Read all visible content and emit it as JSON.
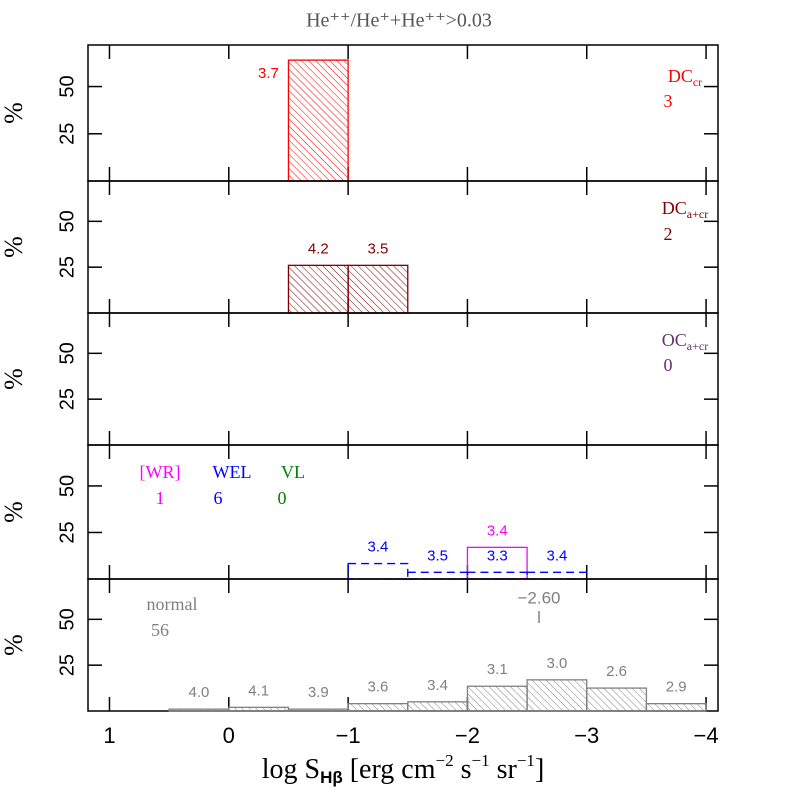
{
  "chart_data": {
    "type": "histogram",
    "title": "He⁺⁺/He⁺+He⁺⁺>0.03",
    "xlabel_parts": [
      {
        "text": "log S"
      },
      {
        "text": "Hβ",
        "sub": true
      },
      {
        "text": " [erg cm"
      },
      {
        "text": "−2",
        "sup": true
      },
      {
        "text": " s"
      },
      {
        "text": "−1",
        "sup": true
      },
      {
        "text": " sr"
      },
      {
        "text": "−1",
        "sup": true
      },
      {
        "text": "]"
      }
    ],
    "xlim": [
      1.18,
      -4.1
    ],
    "xticks": [
      1,
      0,
      {
        "value": -1,
        "label": "−1"
      },
      {
        "value": -2,
        "label": "−2"
      },
      {
        "value": -3,
        "label": "−3"
      },
      {
        "value": -4,
        "label": "−4"
      }
    ],
    "ylim": [
      0,
      72
    ],
    "yticks": [
      25,
      50
    ],
    "ylabel": "%",
    "panels": [
      {
        "series": [
          {
            "name": "DC",
            "subscript": "cr",
            "count": "3",
            "color": "#ff0000",
            "hatched": true,
            "bins": [
              -0.5,
              -1
            ],
            "values": [
              64
            ],
            "bar_annotations": [
              "3.7"
            ]
          }
        ]
      },
      {
        "series": [
          {
            "name": "DC",
            "subscript": "a+cr",
            "count": "2",
            "color": "#800000",
            "hatched": true,
            "bins": [
              -0.5,
              -1,
              -1.5
            ],
            "values": [
              26,
              26
            ],
            "bar_annotations": [
              "4.2",
              "3.5"
            ]
          }
        ]
      },
      {
        "series": [
          {
            "name": "OC",
            "subscript": "a+cr",
            "count": "0",
            "color": "#66306e"
          }
        ]
      },
      {
        "series": [
          {
            "name": "[WR]",
            "count": "1",
            "color": "#ff00ff",
            "hatched": false,
            "bins": [
              -2,
              -2.5
            ],
            "values": [
              17
            ],
            "bar_annotations": [
              "3.4"
            ]
          },
          {
            "name": "WEL",
            "count": "6",
            "color": "#0000ff",
            "hatched": false,
            "dashed": true,
            "bins": [
              -1,
              -1.5,
              -2,
              -2.5,
              -3
            ],
            "values": [
              8.3,
              3.6,
              3.6,
              3.6
            ],
            "bar_annotations": [
              "3.4",
              "3.5",
              "3.3",
              "3.4"
            ]
          },
          {
            "name": "VL",
            "count": "0",
            "color": "#008000"
          }
        ]
      },
      {
        "series": [
          {
            "name": "normal",
            "count": "56",
            "color": "#808080",
            "hatched": true,
            "bins": [
              0.5,
              0,
              -0.5,
              -1,
              -1.5,
              -2,
              -2.5,
              -3,
              -3.5,
              -4
            ],
            "values": [
              1,
              2,
              1,
              4,
              5,
              13.5,
              17,
              12.5,
              4
            ],
            "bar_annotations": [
              "4.0",
              "4.1",
              "3.9",
              "3.6",
              "3.4",
              "3.1",
              "3.0",
              "2.6",
              "2.9"
            ],
            "marker": {
              "value": -2.6,
              "label": "−2.60"
            }
          }
        ]
      }
    ]
  }
}
